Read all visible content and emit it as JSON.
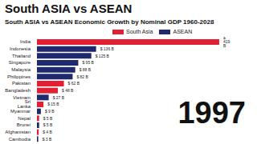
{
  "chart_data": {
    "type": "bar",
    "title": "South ASIA vs ASEAN",
    "subtitle": "South ASIA vs ASEAN Economic Growth by Nominal GDP 1960-2028",
    "annotations": [
      "1997"
    ],
    "orientation": "horizontal",
    "stacked": true,
    "data_labels": true,
    "tick_labels": "y",
    "grid": false,
    "legend": "top",
    "xlim": [
      0,
      480
    ],
    "categories": [
      "India",
      "Indonesia",
      "Thailand",
      "Singapore",
      "Malaysia",
      "Philippines",
      "Pakistan",
      "Bangladesh",
      "Vietnam",
      "Sri Lanka",
      "Myanmar",
      "Nepal",
      "Brunei",
      "Afghanistan",
      "Cambodia"
    ],
    "series": [
      {
        "name": "South Asia",
        "color": "#e21f33",
        "values": [
          419,
          null,
          null,
          null,
          null,
          null,
          62,
          48,
          null,
          15,
          null,
          5,
          null,
          4,
          null
        ],
        "value_labels": [
          "$ 419 B",
          null,
          null,
          null,
          null,
          null,
          "$ 62 B",
          "$ 48 B",
          null,
          "$ 15 B",
          null,
          "$ 5 B",
          null,
          "$ 4 B",
          null
        ]
      },
      {
        "name": "ASEAN",
        "color": "#1f2a6e",
        "values": [
          null,
          136,
          125,
          95,
          88,
          82,
          null,
          null,
          27,
          null,
          9,
          null,
          5,
          null,
          3
        ],
        "value_labels": [
          null,
          "$ 136 B",
          "$ 125 B",
          "$ 95 B",
          "$ 88 B",
          "$ 82 B",
          null,
          null,
          "$ 27 B",
          null,
          "$ 9 B",
          null,
          "$ 5 B",
          null,
          "$ 3 B"
        ]
      }
    ]
  }
}
